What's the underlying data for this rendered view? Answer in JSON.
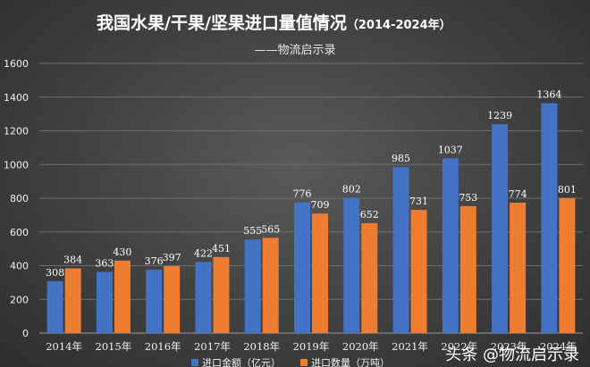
{
  "header": {
    "title": "我国水果/干果/坚果进口量值情况",
    "title_years": "（2014-2024年）",
    "subtitle": "——物流启示录"
  },
  "watermark": {
    "text": "头条 @物流启示录"
  },
  "colors": {
    "series_amount": "#4472c4",
    "series_volume": "#ed7d31"
  },
  "chart_data": {
    "type": "bar",
    "title": "我国水果/干果/坚果进口量值情况（2014-2024年）",
    "categories": [
      "2014年",
      "2015年",
      "2016年",
      "2017年",
      "2018年",
      "2019年",
      "2020年",
      "2021年",
      "2022年",
      "2023年",
      "2024年"
    ],
    "series": [
      {
        "name": "进口金额（亿元）",
        "values": [
          308,
          363,
          376,
          422,
          555,
          776,
          802,
          985,
          1037,
          1239,
          1364
        ]
      },
      {
        "name": "进口数量（万吨）",
        "values": [
          384,
          430,
          397,
          451,
          565,
          709,
          652,
          731,
          753,
          774,
          801
        ]
      }
    ],
    "ylim": [
      0,
      1600
    ],
    "yticks": [
      0,
      200,
      400,
      600,
      800,
      1000,
      1200,
      1400,
      1600
    ],
    "grid": true,
    "legend": "bottom"
  }
}
